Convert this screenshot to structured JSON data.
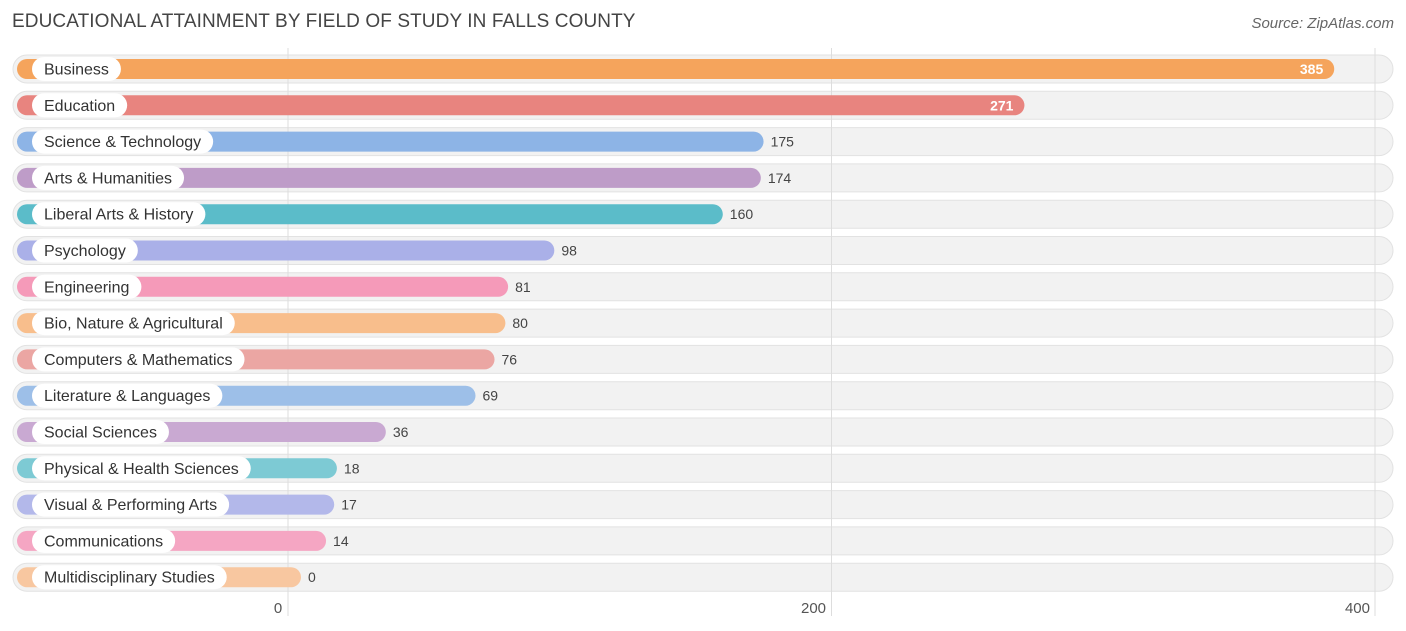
{
  "title": "EDUCATIONAL ATTAINMENT BY FIELD OF STUDY IN FALLS COUNTY",
  "source": "Source: ZipAtlas.com",
  "chart_data": {
    "type": "bar",
    "orientation": "horizontal",
    "title": "EDUCATIONAL ATTAINMENT BY FIELD OF STUDY IN FALLS COUNTY",
    "xlabel": "",
    "ylabel": "",
    "xlim": [
      0,
      400
    ],
    "ticks": [
      0,
      200,
      400
    ],
    "grid": true,
    "categories": [
      "Business",
      "Education",
      "Science & Technology",
      "Arts & Humanities",
      "Liberal Arts & History",
      "Psychology",
      "Engineering",
      "Bio, Nature & Agricultural",
      "Computers & Mathematics",
      "Literature & Languages",
      "Social Sciences",
      "Physical & Health Sciences",
      "Visual & Performing Arts",
      "Communications",
      "Multidisciplinary Studies"
    ],
    "values": [
      385,
      271,
      175,
      174,
      160,
      98,
      81,
      80,
      76,
      69,
      36,
      18,
      17,
      14,
      0
    ],
    "colors": [
      "#f5a45c",
      "#e8847f",
      "#8db4e6",
      "#be9cc8",
      "#5bbcc9",
      "#aab0e8",
      "#f59ab9",
      "#f8be8c",
      "#eba6a3",
      "#9dbfe8",
      "#c9a9d2",
      "#7dcad4",
      "#b3b8ea",
      "#f5a6c3",
      "#f8c7a0"
    ],
    "value_labels_inside": [
      true,
      true,
      false,
      false,
      false,
      false,
      false,
      false,
      false,
      false,
      false,
      false,
      false,
      false,
      false
    ]
  }
}
